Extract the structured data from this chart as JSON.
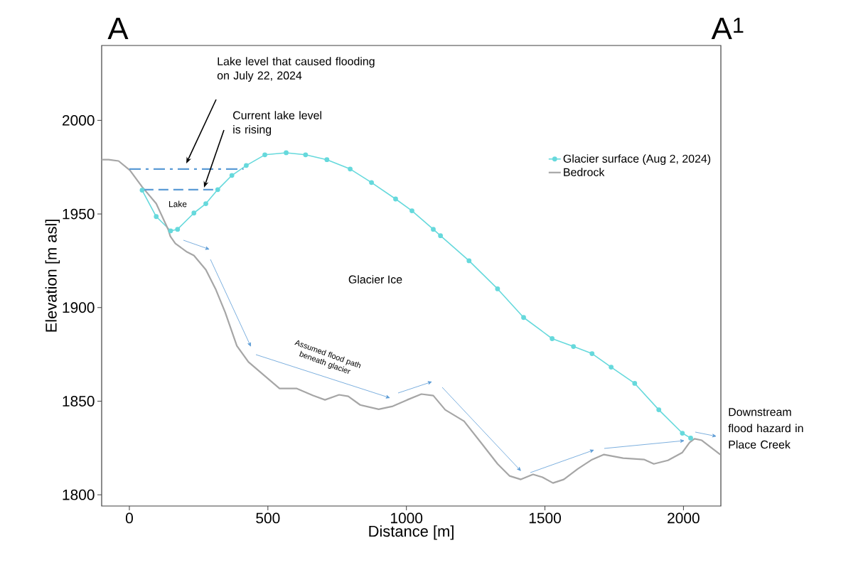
{
  "chart_data": {
    "type": "line",
    "xlabel": "Distance [m]",
    "ylabel": "Elevation [m asl]",
    "xlim": [
      -100,
      2135
    ],
    "ylim": [
      1794,
      2040
    ],
    "xticks": [
      0,
      500,
      1000,
      1500,
      2000
    ],
    "yticks": [
      1800,
      1850,
      1900,
      1950,
      2000
    ],
    "legend": "top right",
    "grid": false,
    "series": [
      {
        "name": "Glacier surface (Aug 2, 2024)",
        "color": "#66d9dc",
        "marker": "circle",
        "x": [
          46,
          97,
          149,
          174,
          233,
          276,
          319,
          370,
          422,
          489,
          566,
          636,
          713,
          797,
          874,
          961,
          1020,
          1097,
          1123,
          1226,
          1329,
          1423,
          1526,
          1603,
          1670,
          1739,
          1824,
          1911,
          1996,
          2026
        ],
        "values": [
          1962.7,
          1948.6,
          1941,
          1941.8,
          1950.5,
          1955.5,
          1963,
          1970.6,
          1975.9,
          1981.6,
          1982.7,
          1981.6,
          1979,
          1974,
          1966.8,
          1958,
          1951.7,
          1941.8,
          1938.4,
          1925,
          1910,
          1894.7,
          1883.4,
          1879.2,
          1875.4,
          1868.2,
          1859.5,
          1845.4,
          1832.9,
          1830.3
        ]
      },
      {
        "name": "Bedrock",
        "color": "#a6a6a6",
        "marker": "none",
        "x": [
          -100,
          -75,
          -39,
          2,
          46,
          97,
          140,
          148,
          166,
          208,
          233,
          276,
          311,
          346,
          388,
          430,
          490,
          542,
          603,
          663,
          706,
          757,
          790,
          833,
          900,
          951,
          1003,
          1054,
          1097,
          1140,
          1208,
          1269,
          1329,
          1372,
          1413,
          1457,
          1491,
          1529,
          1568,
          1619,
          1670,
          1713,
          1782,
          1859,
          1893,
          1944,
          1996,
          2022,
          2040,
          2066,
          2133
        ],
        "values": [
          1979,
          1979,
          1978.3,
          1973.3,
          1964.5,
          1955.5,
          1941.8,
          1938,
          1934.2,
          1929.7,
          1927.8,
          1920.2,
          1910,
          1897.4,
          1879.6,
          1870.9,
          1863.3,
          1856.8,
          1856.8,
          1853,
          1850.7,
          1853.4,
          1852.6,
          1848,
          1845.7,
          1847.3,
          1850.7,
          1853.8,
          1853,
          1845.4,
          1839.3,
          1827.9,
          1816.5,
          1810.1,
          1808.2,
          1810.9,
          1809.4,
          1806.3,
          1808.2,
          1813.9,
          1818.8,
          1821.5,
          1819.6,
          1818.8,
          1816.5,
          1818.4,
          1822.6,
          1827.9,
          1829.9,
          1829.1,
          1821.5
        ]
      },
      {
        "color": "#5b9bd5",
        "line_style": "dashdot",
        "marker": "none",
        "x": [
          0,
          412
        ],
        "values": [
          1974,
          1974
        ]
      },
      {
        "color": "#5b9bd5",
        "line_style": "dashed",
        "marker": "none",
        "x": [
          51,
          310
        ],
        "values": [
          1963,
          1963
        ]
      }
    ],
    "annotations": [
      "Lake level that caused flooding on July 22, 2024",
      "Current lake level is rising",
      "Lake",
      "Glacier Ice",
      "Assumed flood path beneath glacier",
      "Downstream flood hazard in Place Creek",
      "A",
      "A$^{1}$"
    ]
  }
}
